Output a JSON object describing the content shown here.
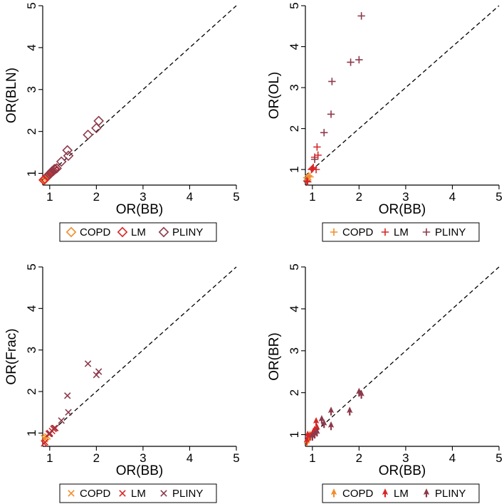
{
  "colors": {
    "COPD": "#f28e2b",
    "LM": "#d62728",
    "PLINY": "#8c3a4b",
    "diagonal": "#000000"
  },
  "chart_data": [
    {
      "type": "scatter",
      "xlabel": "OR(BB)",
      "ylabel": "OR(BLN)",
      "marker": "diamond",
      "xlim": [
        0.85,
        5.0
      ],
      "ylim": [
        0.72,
        5.0
      ],
      "ticks": [
        1,
        2,
        3,
        4,
        5
      ],
      "reference_line": "y = x (dashed)",
      "legend": [
        "COPD",
        "LM",
        "PLINY"
      ],
      "legend_position": "bottom",
      "series": [
        {
          "name": "COPD",
          "points": [
            [
              0.88,
              0.85
            ],
            [
              0.9,
              0.86
            ],
            [
              0.93,
              0.9
            ],
            [
              0.97,
              0.95
            ]
          ]
        },
        {
          "name": "LM",
          "points": [
            [
              0.87,
              0.84
            ],
            [
              0.9,
              0.87
            ],
            [
              0.95,
              0.93
            ],
            [
              1.0,
              0.98
            ],
            [
              1.03,
              1.02
            ],
            [
              1.05,
              1.04
            ],
            [
              1.08,
              1.06
            ],
            [
              1.12,
              1.1
            ]
          ]
        },
        {
          "name": "PLINY",
          "points": [
            [
              0.99,
              0.98
            ],
            [
              1.02,
              1.0
            ],
            [
              1.05,
              1.05
            ],
            [
              1.1,
              1.1
            ],
            [
              1.15,
              1.12
            ],
            [
              1.25,
              1.28
            ],
            [
              1.38,
              1.55
            ],
            [
              1.4,
              1.42
            ],
            [
              1.82,
              1.92
            ],
            [
              2.0,
              2.08
            ],
            [
              2.05,
              2.25
            ]
          ]
        }
      ]
    },
    {
      "type": "scatter",
      "xlabel": "OR(BB)",
      "ylabel": "OR(OL)",
      "marker": "plus",
      "xlim": [
        0.85,
        5.0
      ],
      "ylim": [
        0.62,
        5.0
      ],
      "ticks": [
        1,
        2,
        3,
        4,
        5
      ],
      "reference_line": "y = x (dashed)",
      "legend": [
        "COPD",
        "LM",
        "PLINY"
      ],
      "legend_position": "bottom",
      "series": [
        {
          "name": "COPD",
          "points": [
            [
              0.88,
              0.8
            ],
            [
              0.9,
              0.75
            ],
            [
              0.92,
              0.85
            ],
            [
              0.95,
              0.82
            ]
          ]
        },
        {
          "name": "LM",
          "points": [
            [
              0.88,
              0.72
            ],
            [
              0.9,
              0.7
            ],
            [
              0.98,
              1.0
            ],
            [
              1.0,
              1.02
            ],
            [
              1.02,
              1.05
            ],
            [
              1.05,
              1.3
            ],
            [
              1.08,
              1.0
            ],
            [
              1.1,
              1.55
            ],
            [
              1.12,
              1.35
            ]
          ]
        },
        {
          "name": "PLINY",
          "points": [
            [
              1.05,
              1.25
            ],
            [
              1.25,
              1.9
            ],
            [
              1.4,
              2.35
            ],
            [
              1.42,
              3.15
            ],
            [
              1.82,
              3.62
            ],
            [
              2.0,
              3.68
            ],
            [
              2.05,
              4.75
            ]
          ]
        }
      ]
    },
    {
      "type": "scatter",
      "xlabel": "OR(BB)",
      "ylabel": "OR(Frac)",
      "marker": "x",
      "xlim": [
        0.85,
        5.0
      ],
      "ylim": [
        0.68,
        5.0
      ],
      "ticks": [
        1,
        2,
        3,
        4,
        5
      ],
      "reference_line": "y = x (dashed)",
      "legend": [
        "COPD",
        "LM",
        "PLINY"
      ],
      "legend_position": "bottom",
      "series": [
        {
          "name": "COPD",
          "points": [
            [
              0.88,
              0.88
            ],
            [
              0.9,
              0.85
            ],
            [
              0.92,
              0.9
            ],
            [
              0.95,
              0.92
            ]
          ]
        },
        {
          "name": "LM",
          "points": [
            [
              0.88,
              0.75
            ],
            [
              0.9,
              0.78
            ],
            [
              0.98,
              0.98
            ],
            [
              1.0,
              1.0
            ],
            [
              1.05,
              1.05
            ],
            [
              1.08,
              1.1
            ],
            [
              1.12,
              1.12
            ]
          ]
        },
        {
          "name": "PLINY",
          "points": [
            [
              1.0,
              0.98
            ],
            [
              1.1,
              1.12
            ],
            [
              1.25,
              1.3
            ],
            [
              1.38,
              1.9
            ],
            [
              1.4,
              1.5
            ],
            [
              1.82,
              2.67
            ],
            [
              2.0,
              2.4
            ],
            [
              2.05,
              2.48
            ]
          ]
        }
      ]
    },
    {
      "type": "scatter",
      "xlabel": "OR(BB)",
      "ylabel": "OR(BR)",
      "marker": "arrow",
      "xlim": [
        0.85,
        5.0
      ],
      "ylim": [
        0.72,
        5.0
      ],
      "ticks": [
        1,
        2,
        3,
        4,
        5
      ],
      "reference_line": "y = x (dashed)",
      "legend": [
        "COPD",
        "LM",
        "PLINY"
      ],
      "legend_position": "bottom",
      "series": [
        {
          "name": "COPD",
          "points": [
            [
              0.88,
              0.82
            ],
            [
              0.9,
              0.88
            ],
            [
              0.92,
              0.92
            ],
            [
              0.95,
              0.98
            ]
          ]
        },
        {
          "name": "LM",
          "points": [
            [
              0.88,
              0.85
            ],
            [
              0.9,
              0.98
            ],
            [
              0.95,
              0.95
            ],
            [
              1.0,
              1.0
            ],
            [
              1.02,
              1.05
            ],
            [
              1.05,
              1.1
            ],
            [
              1.08,
              1.3
            ],
            [
              1.1,
              1.15
            ]
          ]
        },
        {
          "name": "PLINY",
          "points": [
            [
              1.0,
              0.95
            ],
            [
              1.05,
              1.0
            ],
            [
              1.1,
              1.05
            ],
            [
              1.2,
              1.35
            ],
            [
              1.25,
              1.25
            ],
            [
              1.4,
              1.2
            ],
            [
              1.4,
              1.55
            ],
            [
              1.8,
              1.55
            ],
            [
              2.0,
              2.0
            ],
            [
              2.05,
              1.95
            ]
          ]
        }
      ]
    }
  ]
}
